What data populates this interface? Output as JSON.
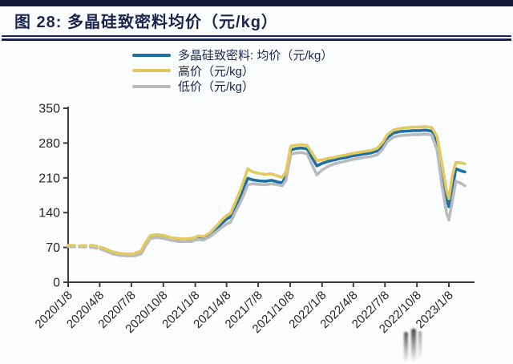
{
  "page": {
    "top_bar_color": "#141b38",
    "background": "#fcfdfe",
    "navy": "#1b2550"
  },
  "header": {
    "title": "图 28: 多晶硅致密料均价（元/kg）"
  },
  "legend": [
    {
      "label": "多晶硅致密料: 均价（元/kg）",
      "color": "#1e6fa5"
    },
    {
      "label": "高价（元/kg）",
      "color": "#e3c95f"
    },
    {
      "label": "低价（元/kg）",
      "color": "#b9bcbf"
    }
  ],
  "chart_data": {
    "type": "line",
    "title": "多晶硅致密料均价（元/kg）",
    "xlabel": "",
    "ylabel": "",
    "ylim": [
      0,
      350
    ],
    "yticks": [
      0,
      70,
      140,
      210,
      280,
      350
    ],
    "grid": false,
    "legend_position": "top",
    "axis_color": "#3c3c3c",
    "tick_color": "#262626",
    "x_range": [
      "2020/1/8",
      "2023/1/8"
    ],
    "xticks": [
      "2020/1/8",
      "2020/4/8",
      "2020/7/8",
      "2020/10/8",
      "2021/1/8",
      "2021/4/8",
      "2021/7/8",
      "2021/10/8",
      "2022/1/8",
      "2022/4/8",
      "2022/7/8",
      "2022/10/8",
      "2023/1/8"
    ],
    "dash_until_index": 5,
    "x": [
      "2020/1/8",
      "2020/1/20",
      "2020/2/10",
      "2020/3/1",
      "2020/3/20",
      "2020/4/10",
      "2020/4/25",
      "2020/5/15",
      "2020/6/5",
      "2020/6/25",
      "2020/7/15",
      "2020/8/5",
      "2020/8/18",
      "2020/9/1",
      "2020/9/20",
      "2020/10/10",
      "2020/11/1",
      "2020/11/20",
      "2020/12/10",
      "2020/12/28",
      "2021/1/10",
      "2021/1/18",
      "2021/2/1",
      "2021/2/20",
      "2021/3/10",
      "2021/3/25",
      "2021/4/8",
      "2021/4/20",
      "2021/5/1",
      "2021/5/14",
      "2021/5/27",
      "2021/6/8",
      "2021/6/22",
      "2021/7/10",
      "2021/7/28",
      "2021/8/15",
      "2021/9/1",
      "2021/9/15",
      "2021/9/26",
      "2021/10/10",
      "2021/10/25",
      "2021/11/10",
      "2021/11/26",
      "2021/12/10",
      "2021/12/24",
      "2022/1/8",
      "2022/1/25",
      "2022/2/12",
      "2022/3/1",
      "2022/3/18",
      "2022/4/5",
      "2022/4/22",
      "2022/5/10",
      "2022/5/28",
      "2022/6/15",
      "2022/7/1",
      "2022/7/15",
      "2022/8/1",
      "2022/8/20",
      "2022/9/10",
      "2022/9/28",
      "2022/10/15",
      "2022/11/1",
      "2022/11/20",
      "2022/12/5",
      "2022/12/18",
      "2023/1/1",
      "2023/1/8",
      "2023/1/18",
      "2023/1/28",
      "2023/2/12",
      "2023/2/23"
    ],
    "series": [
      {
        "name": "多晶硅致密料: 均价（元/kg）",
        "color": "#1e6fa5",
        "values": [
          73,
          72,
          72,
          73,
          72,
          69,
          65,
          59,
          56,
          55,
          55,
          60,
          76,
          91,
          93,
          91,
          87,
          85,
          85,
          85,
          88,
          90,
          89,
          96,
          107,
          118,
          127,
          132,
          148,
          166,
          188,
          209,
          206,
          204,
          203,
          205,
          202,
          200,
          212,
          266,
          269,
          270,
          268,
          251,
          234,
          239,
          243,
          246,
          249,
          251,
          254,
          256,
          258,
          260,
          264,
          275,
          291,
          300,
          303,
          304,
          305,
          305,
          306,
          304,
          283,
          228,
          170,
          152,
          188,
          228,
          224,
          222
        ]
      },
      {
        "name": "高价（元/kg）",
        "color": "#e3c95f",
        "values": [
          74,
          74,
          73,
          74,
          74,
          71,
          67,
          61,
          58,
          57,
          57,
          63,
          80,
          94,
          96,
          94,
          89,
          88,
          87,
          88,
          91,
          93,
          92,
          100,
          113,
          125,
          134,
          139,
          157,
          178,
          203,
          228,
          222,
          219,
          217,
          218,
          214,
          211,
          222,
          274,
          276,
          277,
          275,
          260,
          245,
          246,
          249,
          251,
          254,
          256,
          259,
          261,
          263,
          265,
          269,
          281,
          297,
          306,
          309,
          311,
          312,
          312,
          313,
          311,
          293,
          242,
          185,
          168,
          214,
          241,
          240,
          238
        ]
      },
      {
        "name": "低价（元/kg）",
        "color": "#b9bcbf",
        "values": [
          72,
          71,
          71,
          71,
          70,
          67,
          63,
          57,
          54,
          53,
          53,
          57,
          73,
          88,
          90,
          88,
          84,
          82,
          82,
          82,
          85,
          86,
          85,
          92,
          102,
          110,
          117,
          121,
          138,
          155,
          175,
          196,
          198,
          197,
          196,
          198,
          196,
          194,
          205,
          257,
          260,
          261,
          258,
          237,
          216,
          226,
          233,
          238,
          241,
          244,
          247,
          249,
          251,
          253,
          256,
          267,
          283,
          292,
          295,
          296,
          297,
          297,
          298,
          296,
          265,
          200,
          140,
          125,
          163,
          203,
          199,
          194
        ]
      }
    ]
  }
}
